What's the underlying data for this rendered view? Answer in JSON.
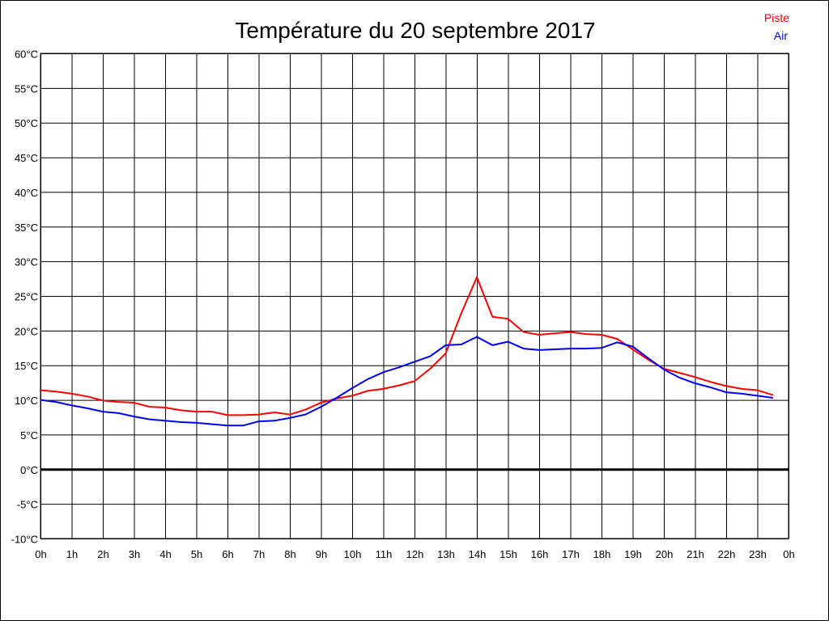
{
  "chart_data": {
    "type": "line",
    "title": "Température du 20 septembre 2017",
    "xlabel": "",
    "ylabel": "",
    "ylim": [
      -10,
      60
    ],
    "xlim": [
      0,
      24
    ],
    "grid": true,
    "legend_position": "top-right",
    "y_ticks": [
      "-10°C",
      "-5°C",
      "0°C",
      "5°C",
      "10°C",
      "15°C",
      "20°C",
      "25°C",
      "30°C",
      "35°C",
      "40°C",
      "45°C",
      "50°C",
      "55°C",
      "60°C"
    ],
    "x_ticks": [
      "0h",
      "1h",
      "2h",
      "3h",
      "4h",
      "5h",
      "6h",
      "7h",
      "8h",
      "9h",
      "10h",
      "11h",
      "12h",
      "13h",
      "14h",
      "15h",
      "16h",
      "17h",
      "18h",
      "19h",
      "20h",
      "21h",
      "22h",
      "23h",
      "0h"
    ],
    "x": [
      0,
      0.5,
      1,
      1.5,
      2,
      2.5,
      3,
      3.5,
      4,
      4.5,
      5,
      5.5,
      6,
      6.5,
      7,
      7.5,
      8,
      8.5,
      9,
      9.5,
      10,
      10.5,
      11,
      11.5,
      12,
      12.5,
      13,
      13.5,
      14,
      14.5,
      15,
      15.5,
      16,
      16.5,
      17,
      17.5,
      18,
      18.5,
      19,
      19.5,
      20,
      20.5,
      21,
      21.5,
      22,
      22.5,
      23,
      23.5
    ],
    "series": [
      {
        "name": "Piste",
        "color": "#ff0000",
        "values": [
          11.4,
          11.2,
          10.9,
          10.5,
          9.9,
          9.7,
          9.6,
          9.0,
          8.9,
          8.5,
          8.3,
          8.3,
          7.8,
          7.8,
          7.9,
          8.2,
          7.9,
          8.6,
          9.6,
          10.2,
          10.6,
          11.3,
          11.6,
          12.1,
          12.7,
          14.5,
          16.7,
          22.5,
          27.7,
          22.0,
          21.7,
          19.8,
          19.4,
          19.6,
          19.8,
          19.5,
          19.4,
          18.8,
          17.3,
          15.8,
          14.5,
          13.9,
          13.3,
          12.6,
          12.0,
          11.6,
          11.4,
          10.7
        ]
      },
      {
        "name": "Air",
        "color": "#0000ff",
        "values": [
          10.0,
          9.7,
          9.2,
          8.8,
          8.3,
          8.1,
          7.6,
          7.2,
          7.0,
          6.8,
          6.7,
          6.5,
          6.3,
          6.3,
          6.9,
          7.0,
          7.4,
          7.9,
          9.0,
          10.3,
          11.7,
          13.0,
          14.0,
          14.7,
          15.5,
          16.3,
          17.9,
          18.0,
          19.1,
          17.9,
          18.4,
          17.4,
          17.2,
          17.3,
          17.4,
          17.4,
          17.5,
          18.3,
          17.7,
          16.0,
          14.4,
          13.2,
          12.4,
          11.8,
          11.1,
          10.9,
          10.6,
          10.3
        ]
      }
    ]
  }
}
